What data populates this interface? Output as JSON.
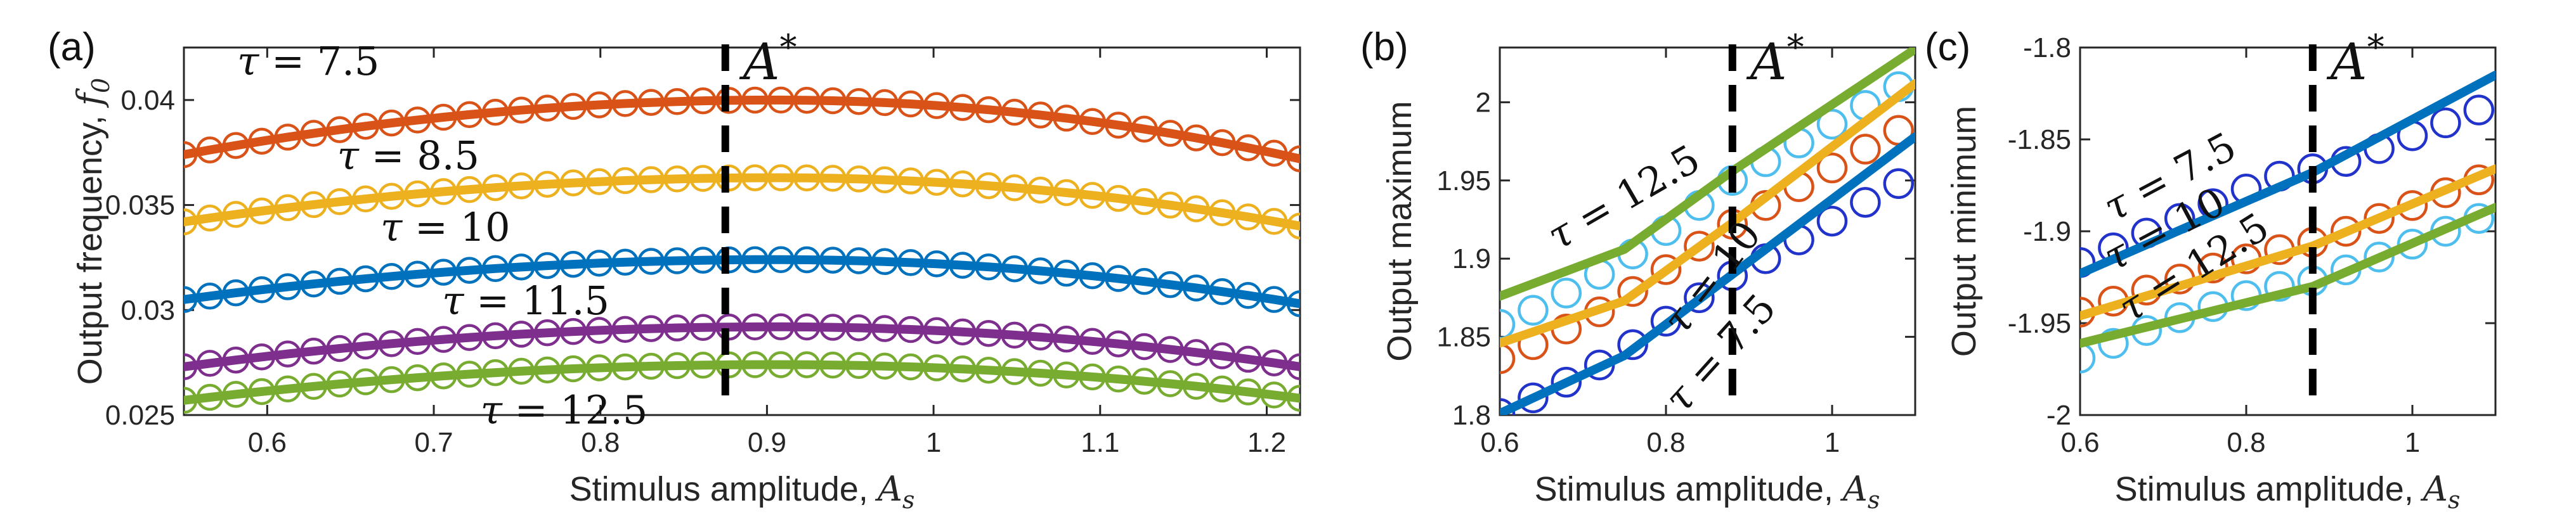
{
  "chart_data": [
    {
      "type": "line",
      "panel_label": "(a)",
      "xlabel": "Stimulus amplitude, ",
      "xlabel_var": "A",
      "xlabel_sub": "s",
      "ylabel": "Output frequency, ",
      "ylabel_var": "f",
      "ylabel_sub": "0",
      "xlim": [
        0.55,
        1.22
      ],
      "ylim": [
        0.025,
        0.0425
      ],
      "xticks": [
        0.6,
        0.7,
        0.8,
        0.9,
        1.0,
        1.1,
        1.2
      ],
      "xtick_labels": [
        "0.6",
        "0.7",
        "0.8",
        "0.9",
        "1",
        "1.1",
        "1.2"
      ],
      "yticks": [
        0.025,
        0.03,
        0.035,
        0.04
      ],
      "ytick_labels": [
        "0.025",
        "0.03",
        "0.035",
        "0.04"
      ],
      "vline_x": 0.875,
      "vline_label": "A",
      "vline_label_sup": "*",
      "series": [
        {
          "name": "τ = 7.5",
          "tau": "7.5",
          "color": "#D95319",
          "peak": 0.04,
          "drop_left": 0.0026,
          "drop_right": 0.0028,
          "label_at": [
            0.582,
            0.0412
          ],
          "label_rot": 0
        },
        {
          "name": "τ = 8.5",
          "tau": "8.5",
          "color": "#EDB120",
          "peak": 0.0363,
          "drop_left": 0.0021,
          "drop_right": 0.0023,
          "label_at": [
            0.642,
            0.0367
          ],
          "label_rot": 0
        },
        {
          "name": "τ = 10",
          "tau": "10",
          "color": "#0072BD",
          "peak": 0.0324,
          "drop_left": 0.0019,
          "drop_right": 0.0021,
          "label_at": [
            0.668,
            0.0333
          ],
          "label_rot": 0
        },
        {
          "name": "τ = 11.5",
          "tau": "11.5",
          "color": "#7E2F8E",
          "peak": 0.0292,
          "drop_left": 0.0019,
          "drop_right": 0.0019,
          "label_at": [
            0.705,
            0.0298
          ],
          "label_rot": 0
        },
        {
          "name": "τ = 12.5",
          "tau": "12.5",
          "color": "#77AC30",
          "peak": 0.0274,
          "drop_left": 0.0017,
          "drop_right": 0.0016,
          "label_at": [
            0.728,
            0.0246
          ],
          "label_rot": 0
        }
      ]
    },
    {
      "type": "line",
      "panel_label": "(b)",
      "xlabel": "Stimulus amplitude, ",
      "xlabel_var": "A",
      "xlabel_sub": "s",
      "ylabel": "Output maximum",
      "xlim": [
        0.6,
        1.1
      ],
      "ylim": [
        1.8,
        2.035
      ],
      "xticks": [
        0.6,
        0.8,
        1.0
      ],
      "xtick_labels": [
        "0.6",
        "0.8",
        "1"
      ],
      "yticks": [
        1.8,
        1.85,
        1.9,
        1.95,
        2.0
      ],
      "ytick_labels": [
        "1.8",
        "1.85",
        "1.9",
        "1.95",
        "2"
      ],
      "vline_x": 0.88,
      "vline_label": "A",
      "vline_label_sup": "*",
      "series": [
        {
          "name": "τ = 12.5",
          "tau": "12.5",
          "line_color": "#77AC30",
          "marker_color": "#4DBEEE",
          "line_x": [
            0.6,
            0.75,
            0.88,
            1.1
          ],
          "line_y": [
            1.876,
            1.906,
            1.956,
            2.034
          ],
          "markers_x": [
            0.6,
            0.64,
            0.68,
            0.72,
            0.76,
            0.8,
            0.84,
            0.88,
            0.92,
            0.96,
            1.0,
            1.04,
            1.08
          ],
          "markers_y": [
            1.858,
            1.867,
            1.878,
            1.89,
            1.903,
            1.918,
            1.934,
            1.95,
            1.962,
            1.974,
            1.986,
            1.998,
            2.01
          ],
          "label_at": [
            0.67,
            1.905
          ],
          "label_rot": -30
        },
        {
          "name": "τ = 10",
          "tau": "10",
          "line_color": "#EDB120",
          "marker_color": "#D95319",
          "line_x": [
            0.6,
            0.75,
            0.88,
            1.1
          ],
          "line_y": [
            1.846,
            1.873,
            1.923,
            2.012
          ],
          "markers_x": [
            0.6,
            0.64,
            0.68,
            0.72,
            0.76,
            0.8,
            0.84,
            0.88,
            0.92,
            0.96,
            1.0,
            1.04,
            1.08
          ],
          "markers_y": [
            1.836,
            1.845,
            1.855,
            1.866,
            1.879,
            1.893,
            1.908,
            1.922,
            1.934,
            1.946,
            1.958,
            1.97,
            1.982
          ],
          "label_at": [
            0.82,
            1.85
          ],
          "label_rot": -52
        },
        {
          "name": "τ = 7.5",
          "tau": "7.5",
          "line_color": "#0072BD",
          "marker_color": "#2233CC",
          "line_x": [
            0.6,
            0.75,
            0.88,
            1.1
          ],
          "line_y": [
            1.801,
            1.838,
            1.89,
            1.978
          ],
          "markers_x": [
            0.6,
            0.64,
            0.68,
            0.72,
            0.76,
            0.8,
            0.84,
            0.88,
            0.92,
            0.96,
            1.0,
            1.04,
            1.08
          ],
          "markers_y": [
            1.801,
            1.811,
            1.821,
            1.832,
            1.845,
            1.86,
            1.875,
            1.889,
            1.9,
            1.912,
            1.924,
            1.936,
            1.948
          ],
          "label_at": [
            0.82,
            1.8
          ],
          "label_rot": -48
        }
      ]
    },
    {
      "type": "line",
      "panel_label": "(c)",
      "xlabel": "Stimulus amplitude, ",
      "xlabel_var": "A",
      "xlabel_sub": "s",
      "ylabel": "Output minimum",
      "xlim": [
        0.6,
        1.1
      ],
      "ylim": [
        -2.0,
        -1.8
      ],
      "xticks": [
        0.6,
        0.8,
        1.0
      ],
      "xtick_labels": [
        "0.6",
        "0.8",
        "1"
      ],
      "yticks": [
        -2.0,
        -1.95,
        -1.9,
        -1.85,
        -1.8
      ],
      "ytick_labels": [
        "-2",
        "-1.95",
        "-1.9",
        "-1.85",
        "-1.8"
      ],
      "vline_x": 0.88,
      "vline_label": "A",
      "vline_label_sup": "*",
      "series": [
        {
          "name": "τ = 7.5",
          "tau": "7.5",
          "line_color": "#0072BD",
          "marker_color": "#2233CC",
          "line_x": [
            0.6,
            0.88,
            1.1
          ],
          "line_y": [
            -1.923,
            -1.868,
            -1.815
          ],
          "markers_x": [
            0.6,
            0.64,
            0.68,
            0.72,
            0.76,
            0.8,
            0.84,
            0.88,
            0.92,
            0.96,
            1.0,
            1.04,
            1.08
          ],
          "markers_y": [
            -1.917,
            -1.909,
            -1.901,
            -1.893,
            -1.885,
            -1.877,
            -1.87,
            -1.866,
            -1.862,
            -1.855,
            -1.848,
            -1.841,
            -1.834
          ],
          "label_at": [
            0.64,
            -1.895
          ],
          "label_rot": -28
        },
        {
          "name": "τ = 10",
          "tau": "10",
          "line_color": "#EDB120",
          "marker_color": "#D95319",
          "line_x": [
            0.6,
            0.88,
            1.1
          ],
          "line_y": [
            -1.946,
            -1.908,
            -1.866
          ],
          "markers_x": [
            0.6,
            0.64,
            0.68,
            0.72,
            0.76,
            0.8,
            0.84,
            0.88,
            0.92,
            0.96,
            1.0,
            1.04,
            1.08
          ],
          "markers_y": [
            -1.944,
            -1.938,
            -1.932,
            -1.926,
            -1.92,
            -1.915,
            -1.91,
            -1.906,
            -1.9,
            -1.893,
            -1.886,
            -1.879,
            -1.872
          ],
          "label_at": [
            0.64,
            -1.922
          ],
          "label_rot": -28
        },
        {
          "name": "τ = 12.5",
          "tau": "12.5",
          "line_color": "#77AC30",
          "marker_color": "#4DBEEE",
          "line_x": [
            0.6,
            0.88,
            1.1
          ],
          "line_y": [
            -1.961,
            -1.93,
            -1.887
          ],
          "markers_x": [
            0.6,
            0.64,
            0.68,
            0.72,
            0.76,
            0.8,
            0.84,
            0.88,
            0.92,
            0.96,
            1.0,
            1.04,
            1.08
          ],
          "markers_y": [
            -1.969,
            -1.961,
            -1.954,
            -1.947,
            -1.941,
            -1.935,
            -1.93,
            -1.927,
            -1.921,
            -1.914,
            -1.907,
            -1.9,
            -1.893
          ],
          "label_at": [
            0.66,
            -1.95
          ],
          "label_rot": -32
        }
      ]
    }
  ]
}
